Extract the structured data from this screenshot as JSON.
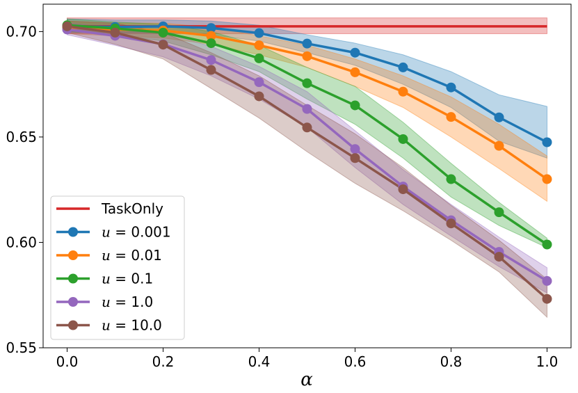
{
  "chart_data": {
    "type": "line",
    "title": "",
    "xlabel": "α",
    "ylabel": "",
    "xlim": [
      -0.05,
      1.05
    ],
    "ylim": [
      0.55,
      0.713
    ],
    "x_ticks": [
      "0.0",
      "0.2",
      "0.4",
      "0.6",
      "0.8",
      "1.0"
    ],
    "y_ticks": [
      "0.55",
      "0.60",
      "0.65",
      "0.70"
    ],
    "grid": false,
    "legend_position": "lower-left",
    "x": [
      0.0,
      0.1,
      0.2,
      0.3,
      0.4,
      0.5,
      0.6,
      0.7,
      0.8,
      0.9,
      1.0
    ],
    "baseline": {
      "name": "TaskOnly",
      "color": "#d62728",
      "value": 0.7025,
      "band": [
        0.699,
        0.7065
      ],
      "x_range": [
        0.0,
        1.0
      ]
    },
    "series": [
      {
        "name": "u = 0.001",
        "legend_prefix": "u",
        "legend_value": " = 0.001",
        "color": "#1f77b4",
        "values": [
          0.7025,
          0.7022,
          0.7025,
          0.7017,
          0.6993,
          0.6943,
          0.69,
          0.683,
          0.6735,
          0.6593,
          0.6475
        ],
        "lower": [
          0.6995,
          0.6995,
          0.6995,
          0.6985,
          0.6955,
          0.69,
          0.684,
          0.675,
          0.664,
          0.648,
          0.64
        ],
        "upper": [
          0.706,
          0.7055,
          0.7055,
          0.705,
          0.703,
          0.6985,
          0.6945,
          0.689,
          0.681,
          0.67,
          0.6645
        ]
      },
      {
        "name": "u = 0.01",
        "legend_prefix": "u",
        "legend_value": " = 0.01",
        "color": "#ff7f0e",
        "values": [
          0.702,
          0.701,
          0.7005,
          0.698,
          0.6935,
          0.6883,
          0.6807,
          0.6715,
          0.6595,
          0.6458,
          0.63
        ],
        "lower": [
          0.699,
          0.698,
          0.697,
          0.694,
          0.689,
          0.683,
          0.674,
          0.664,
          0.65,
          0.635,
          0.6195
        ],
        "upper": [
          0.705,
          0.704,
          0.704,
          0.702,
          0.698,
          0.6935,
          0.687,
          0.679,
          0.669,
          0.656,
          0.641
        ]
      },
      {
        "name": "u = 0.1",
        "legend_prefix": "u",
        "legend_value": " = 0.1",
        "color": "#2ca02c",
        "values": [
          0.703,
          0.7015,
          0.6995,
          0.6945,
          0.6873,
          0.6755,
          0.665,
          0.649,
          0.63,
          0.6143,
          0.599
        ],
        "lower": [
          0.7,
          0.6985,
          0.6955,
          0.689,
          0.681,
          0.668,
          0.656,
          0.64,
          0.6215,
          0.608,
          0.5975
        ],
        "upper": [
          0.706,
          0.7045,
          0.7035,
          0.7,
          0.6935,
          0.683,
          0.674,
          0.657,
          0.6375,
          0.619,
          0.602
        ]
      },
      {
        "name": "u = 1.0",
        "legend_prefix": "u",
        "legend_value": " = 1.0",
        "color": "#9467bd",
        "values": [
          0.701,
          0.698,
          0.694,
          0.6865,
          0.676,
          0.6633,
          0.6443,
          0.6265,
          0.6105,
          0.5955,
          0.5817
        ],
        "lower": [
          0.6985,
          0.6935,
          0.688,
          0.679,
          0.668,
          0.6545,
          0.6355,
          0.618,
          0.603,
          0.5885,
          0.576
        ],
        "upper": [
          0.704,
          0.702,
          0.6995,
          0.693,
          0.6835,
          0.6715,
          0.653,
          0.6345,
          0.618,
          0.6025,
          0.588
        ]
      },
      {
        "name": "u = 10.0",
        "legend_prefix": "u",
        "legend_value": " = 10.0",
        "color": "#8c564b",
        "values": [
          0.7025,
          0.6995,
          0.6938,
          0.6818,
          0.6693,
          0.6545,
          0.64,
          0.6252,
          0.609,
          0.5932,
          0.5732
        ],
        "lower": [
          0.6995,
          0.694,
          0.687,
          0.673,
          0.659,
          0.643,
          0.628,
          0.615,
          0.601,
          0.586,
          0.5645
        ],
        "upper": [
          0.705,
          0.704,
          0.6995,
          0.69,
          0.679,
          0.665,
          0.6515,
          0.6355,
          0.6175,
          0.601,
          0.5825
        ]
      }
    ]
  }
}
